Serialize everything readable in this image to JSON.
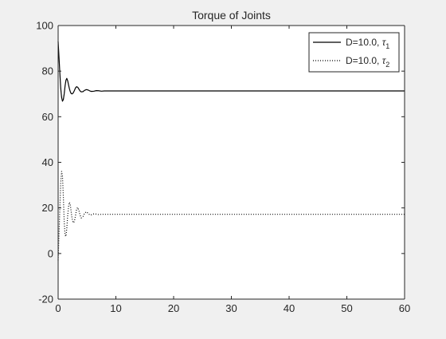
{
  "chart_data": {
    "type": "line",
    "title": "Torque of Joints",
    "xlabel": "",
    "ylabel": "",
    "xlim": [
      0,
      60
    ],
    "ylim": [
      -20,
      100
    ],
    "xticks": [
      0,
      10,
      20,
      30,
      40,
      50,
      60
    ],
    "yticks": [
      -20,
      0,
      20,
      40,
      60,
      80,
      100
    ],
    "grid": false,
    "legend_position": "top-right",
    "series": [
      {
        "name": "D=10.0, τ1",
        "legend_main": "D=10.0, ",
        "legend_symbol": "τ",
        "legend_sub": "1",
        "line_style": "solid",
        "color": "#000000",
        "x": [
          0,
          0.15,
          0.3,
          0.45,
          0.6,
          0.75,
          0.9,
          1.05,
          1.2,
          1.35,
          1.5,
          1.65,
          1.8,
          1.95,
          2.1,
          2.25,
          2.4,
          2.6,
          2.8,
          3.0,
          3.2,
          3.4,
          3.6,
          3.8,
          4.0,
          4.3,
          4.6,
          4.9,
          5.2,
          5.5,
          5.8,
          6.2,
          6.6,
          7.0,
          7.5,
          8.0,
          9.0,
          10.0,
          15.0,
          20.0,
          30.0,
          40.0,
          50.0,
          60.0
        ],
        "y": [
          93,
          86,
          79,
          72.5,
          68.5,
          66.8,
          67.5,
          70,
          73.5,
          76,
          76.8,
          75.8,
          74,
          72.3,
          71,
          70.2,
          70,
          70.4,
          71.4,
          72.6,
          73.2,
          72.9,
          72.1,
          71.3,
          70.9,
          71.0,
          71.6,
          71.9,
          71.7,
          71.3,
          71.1,
          71.2,
          71.45,
          71.4,
          71.2,
          71.3,
          71.3,
          71.3,
          71.3,
          71.3,
          71.3,
          71.3,
          71.3,
          71.3
        ]
      },
      {
        "name": "D=10.0, τ2",
        "legend_main": "D=10.0, ",
        "legend_symbol": "τ",
        "legend_sub": "2",
        "line_style": "dotted",
        "color": "#000000",
        "x": [
          0,
          0.15,
          0.3,
          0.45,
          0.6,
          0.75,
          0.9,
          1.05,
          1.2,
          1.35,
          1.5,
          1.65,
          1.8,
          1.95,
          2.1,
          2.25,
          2.4,
          2.6,
          2.8,
          3.0,
          3.2,
          3.4,
          3.6,
          3.8,
          4.0,
          4.3,
          4.6,
          4.9,
          5.2,
          5.5,
          5.8,
          6.2,
          6.6,
          7.0,
          7.5,
          8.0,
          9.0,
          10.0,
          15.0,
          20.0,
          30.0,
          40.0,
          50.0,
          60.0
        ],
        "y": [
          -3,
          8,
          20,
          31,
          36,
          34,
          25,
          14,
          8,
          7.5,
          11,
          16.5,
          20.5,
          22.5,
          21.5,
          18.5,
          15.5,
          13.5,
          14,
          16.5,
          19.5,
          20.2,
          18.8,
          16.8,
          15.6,
          16.2,
          17.8,
          18.3,
          17.6,
          16.9,
          17,
          17.4,
          17.3,
          17.1,
          17.2,
          17.2,
          17.2,
          17.2,
          17.2,
          17.2,
          17.2,
          17.2,
          17.2,
          17.2
        ]
      }
    ]
  }
}
